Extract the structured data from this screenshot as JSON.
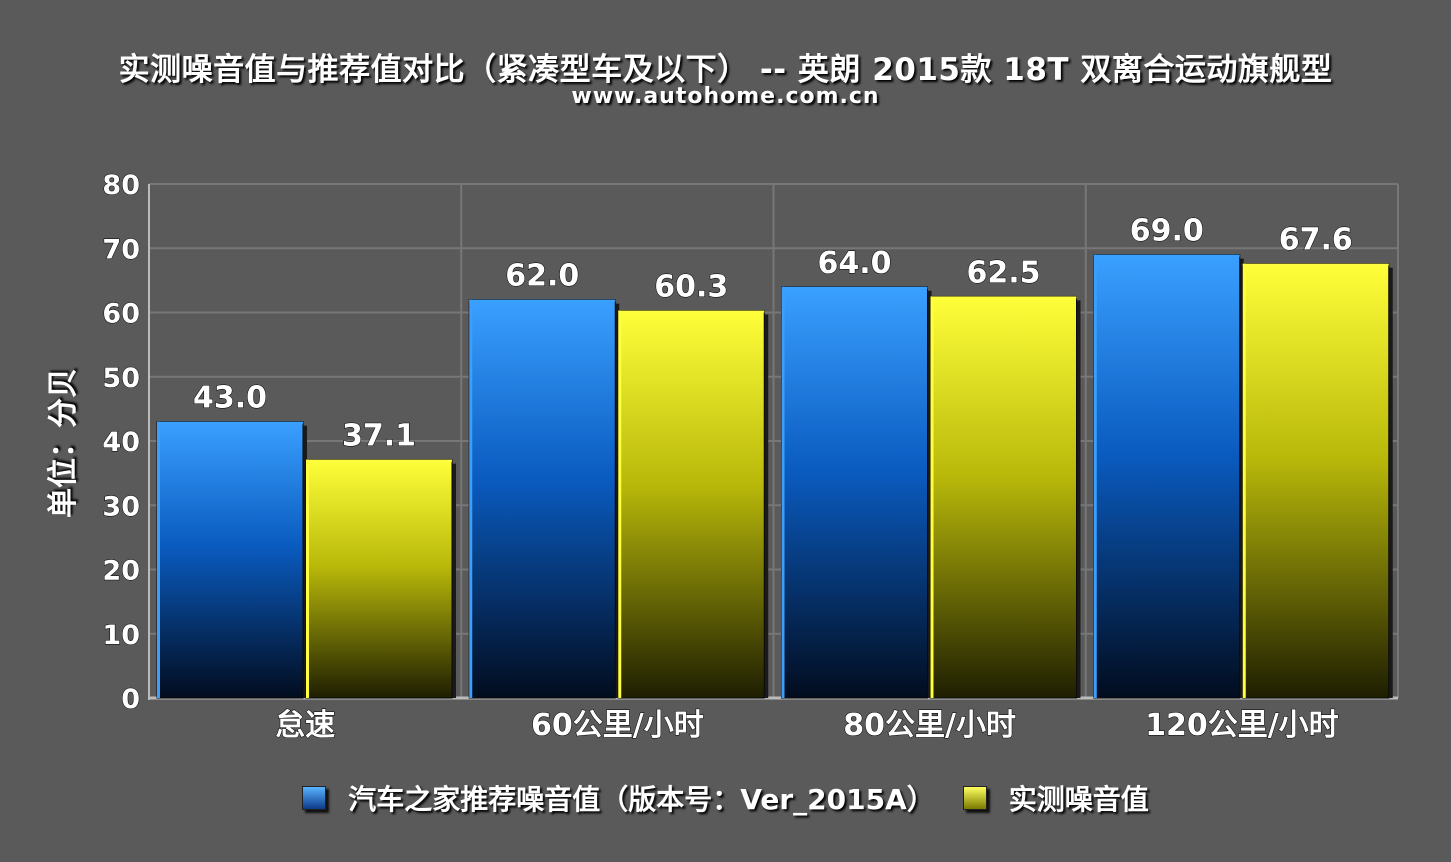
{
  "chart_data": {
    "type": "bar",
    "title": "实测噪音值与推荐值对比（紧凑型车及以下） -- 英朗 2015款 18T 双离合运动旗舰型",
    "subtitle": "www.autohome.com.cn",
    "ylabel": "单位：分贝",
    "ylim": [
      0,
      80
    ],
    "yticks": [
      0,
      10,
      20,
      30,
      40,
      50,
      60,
      70,
      80
    ],
    "grid": true,
    "legend_position": "bottom",
    "categories": [
      "怠速",
      "60公里/小时",
      "80公里/小时",
      "120公里/小时"
    ],
    "series": [
      {
        "name": "汽车之家推荐噪音值（版本号：Ver_2015A）",
        "values": [
          43.0,
          62.0,
          64.0,
          69.0
        ],
        "color": "#1a7cf0",
        "value_labels": [
          "43.0",
          "62.0",
          "64.0",
          "69.0"
        ]
      },
      {
        "name": "实测噪音值",
        "values": [
          37.1,
          60.3,
          62.5,
          67.6
        ],
        "color": "#f2f21a",
        "value_labels": [
          "37.1",
          "60.3",
          "62.5",
          "67.6"
        ]
      }
    ]
  }
}
